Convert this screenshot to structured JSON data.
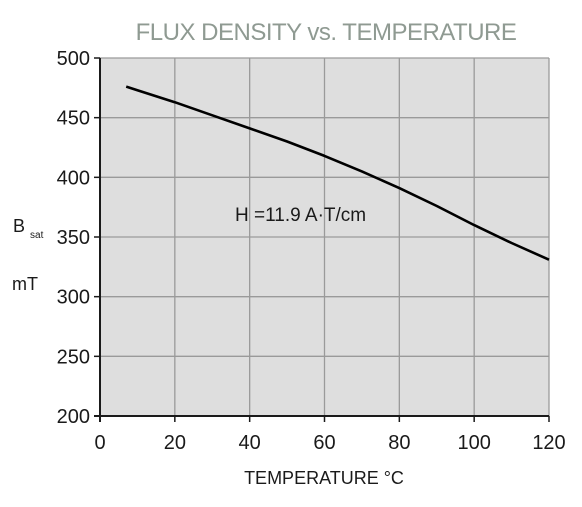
{
  "chart_data": {
    "type": "line",
    "title": "FLUX DENSITY vs. TEMPERATURE",
    "xlabel": "TEMPERATURE °C",
    "ylabel_main": "B",
    "ylabel_sub": "sat",
    "ylabel_unit": "mT",
    "annotation": "H =11.9 A·T/cm",
    "xlim": [
      0,
      120
    ],
    "ylim": [
      200,
      500
    ],
    "xticks": [
      0,
      20,
      40,
      60,
      80,
      100,
      120
    ],
    "yticks": [
      200,
      250,
      300,
      350,
      400,
      450,
      500
    ],
    "grid": true,
    "series": [
      {
        "x": [
          7,
          10,
          20,
          30,
          40,
          50,
          60,
          70,
          80,
          90,
          100,
          110,
          120
        ],
        "y": [
          476,
          473,
          463,
          452,
          441,
          430,
          418,
          405,
          391,
          376,
          360,
          345,
          331
        ]
      }
    ]
  },
  "colors": {
    "plot_bg": "#dedede",
    "grid": "#9a9a9a",
    "axis": "#1a1a1a",
    "line": "#000000",
    "title": "#8f9a92"
  }
}
